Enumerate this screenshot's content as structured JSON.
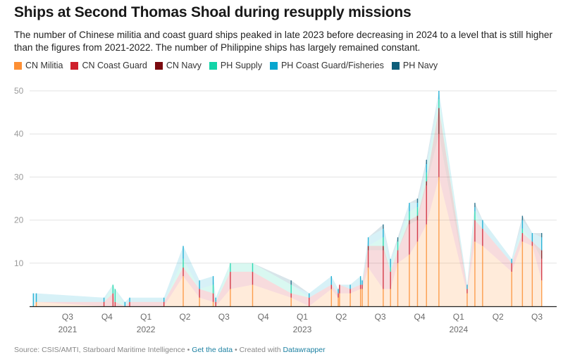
{
  "chart_data": {
    "type": "area",
    "title": "Ships at Second Thomas Shoal during resupply missions",
    "subtitle": "The number of Chinese militia and coast guard ships peaked in late 2023 before decreasing in 2024 to a level that is still higher than the figures from 2021-2022. The number of Philippine ships has largely remained constant.",
    "stacked": true,
    "xlabel": "",
    "ylabel": "",
    "ylim": [
      0,
      50
    ],
    "yticks": [
      10,
      20,
      30,
      40,
      50
    ],
    "grid": true,
    "legend_position": "top-left",
    "x_domain": [
      "2021-05-15",
      "2024-09-30"
    ],
    "x_ticks": [
      {
        "label": "Q3",
        "year": "2021",
        "date": "2021-08-15"
      },
      {
        "label": "Q4",
        "year": "",
        "date": "2021-11-15"
      },
      {
        "label": "Q1",
        "year": "2022",
        "date": "2022-02-14"
      },
      {
        "label": "Q2",
        "year": "",
        "date": "2022-05-16"
      },
      {
        "label": "Q3",
        "year": "",
        "date": "2022-08-15"
      },
      {
        "label": "Q4",
        "year": "",
        "date": "2022-11-15"
      },
      {
        "label": "Q1",
        "year": "2023",
        "date": "2023-02-14"
      },
      {
        "label": "Q2",
        "year": "",
        "date": "2023-05-16"
      },
      {
        "label": "Q3",
        "year": "",
        "date": "2023-08-15"
      },
      {
        "label": "Q4",
        "year": "",
        "date": "2023-11-15"
      },
      {
        "label": "Q1",
        "year": "2024",
        "date": "2024-02-14"
      },
      {
        "label": "Q2",
        "year": "",
        "date": "2024-05-16"
      },
      {
        "label": "Q3",
        "year": "",
        "date": "2024-08-15"
      }
    ],
    "series": [
      {
        "name": "CN Militia",
        "color": "#fd8f34"
      },
      {
        "name": "CN Coast Guard",
        "color": "#cf1f2b"
      },
      {
        "name": "CN Navy",
        "color": "#7a0a0f"
      },
      {
        "name": "PH Supply",
        "color": "#12d4a8"
      },
      {
        "name": "PH Coast Guard/Fisheries",
        "color": "#07a6cf"
      },
      {
        "name": "PH Navy",
        "color": "#0d5e7a"
      }
    ],
    "series_fill_opacity": [
      0.18,
      0.16,
      0.16,
      0.16,
      0.16,
      0.16
    ],
    "missions": [
      {
        "date": "2021-05-27",
        "values": [
          0,
          0,
          0,
          0,
          3,
          0
        ]
      },
      {
        "date": "2021-06-03",
        "values": [
          1,
          0,
          0,
          0,
          2,
          0
        ]
      },
      {
        "date": "2021-11-08",
        "values": [
          0,
          1,
          0,
          0,
          1,
          0
        ]
      },
      {
        "date": "2021-11-29",
        "values": [
          0,
          3,
          0,
          2,
          0,
          0
        ]
      },
      {
        "date": "2021-12-04",
        "values": [
          0,
          1,
          0,
          3,
          0,
          0
        ]
      },
      {
        "date": "2021-12-27",
        "values": [
          0,
          0,
          0,
          0,
          1,
          0
        ]
      },
      {
        "date": "2022-01-07",
        "values": [
          0,
          1,
          0,
          0,
          1,
          0
        ]
      },
      {
        "date": "2022-03-28",
        "values": [
          0,
          1,
          0,
          0,
          1,
          0
        ]
      },
      {
        "date": "2022-05-12",
        "values": [
          7,
          2,
          0,
          2,
          3,
          0
        ]
      },
      {
        "date": "2022-06-19",
        "values": [
          2,
          2,
          0,
          0,
          2,
          0
        ]
      },
      {
        "date": "2022-07-21",
        "values": [
          1,
          2,
          0,
          2,
          2,
          0
        ]
      },
      {
        "date": "2022-07-27",
        "values": [
          0,
          1,
          0,
          0,
          1,
          0
        ]
      },
      {
        "date": "2022-08-30",
        "values": [
          4,
          4,
          0,
          2,
          0,
          0
        ]
      },
      {
        "date": "2022-10-21",
        "values": [
          5,
          3,
          0,
          2,
          0,
          0
        ]
      },
      {
        "date": "2023-01-19",
        "values": [
          2,
          1,
          0,
          2,
          0,
          1
        ]
      },
      {
        "date": "2023-03-02",
        "values": [
          0,
          2,
          0,
          0,
          1,
          0
        ]
      },
      {
        "date": "2023-04-23",
        "values": [
          4,
          1,
          0,
          0,
          2,
          0
        ]
      },
      {
        "date": "2023-05-09",
        "values": [
          2,
          1,
          0,
          0,
          1,
          0
        ]
      },
      {
        "date": "2023-05-12",
        "values": [
          3,
          2,
          0,
          0,
          0,
          0
        ]
      },
      {
        "date": "2023-06-06",
        "values": [
          3,
          1,
          0,
          0,
          1,
          0
        ]
      },
      {
        "date": "2023-06-30",
        "values": [
          4,
          1,
          0,
          0,
          2,
          0
        ]
      },
      {
        "date": "2023-07-04",
        "values": [
          4,
          1,
          0,
          0,
          1,
          0
        ]
      },
      {
        "date": "2023-07-18",
        "values": [
          9,
          4,
          1,
          0,
          2,
          0
        ]
      },
      {
        "date": "2023-08-22",
        "values": [
          4,
          9,
          1,
          2,
          2,
          1
        ]
      },
      {
        "date": "2023-09-08",
        "values": [
          4,
          4,
          0,
          1,
          2,
          0
        ]
      },
      {
        "date": "2023-09-25",
        "values": [
          10,
          3,
          0,
          2,
          0,
          1
        ]
      },
      {
        "date": "2023-10-22",
        "values": [
          12,
          7,
          1,
          2,
          2,
          0
        ]
      },
      {
        "date": "2023-11-10",
        "values": [
          15,
          5,
          1,
          2,
          1,
          1
        ]
      },
      {
        "date": "2023-12-01",
        "values": [
          19,
          9,
          1,
          2,
          2,
          1
        ]
      },
      {
        "date": "2023-12-30",
        "values": [
          30,
          10,
          6,
          2,
          2,
          0
        ]
      },
      {
        "date": "2024-03-05",
        "values": [
          3,
          1,
          0,
          0,
          1,
          0
        ]
      },
      {
        "date": "2024-03-23",
        "values": [
          15,
          5,
          0,
          2,
          1,
          1
        ]
      },
      {
        "date": "2024-04-10",
        "values": [
          14,
          4,
          0,
          0,
          2,
          0
        ]
      },
      {
        "date": "2024-06-17",
        "values": [
          8,
          2,
          0,
          0,
          1,
          0
        ]
      },
      {
        "date": "2024-07-12",
        "values": [
          15,
          2,
          0,
          1,
          2,
          1
        ]
      },
      {
        "date": "2024-08-04",
        "values": [
          14,
          1,
          0,
          0,
          2,
          0
        ]
      },
      {
        "date": "2024-08-26",
        "values": [
          6,
          5,
          2,
          0,
          3,
          1
        ]
      }
    ]
  },
  "legend": [
    {
      "label": "CN Militia",
      "color": "#fd8f34"
    },
    {
      "label": "CN Coast Guard",
      "color": "#cf1f2b"
    },
    {
      "label": "CN Navy",
      "color": "#7a0a0f"
    },
    {
      "label": "PH Supply",
      "color": "#12d4a8"
    },
    {
      "label": "PH Coast Guard/Fisheries",
      "color": "#07a6cf"
    },
    {
      "label": "PH Navy",
      "color": "#0d5e7a"
    }
  ],
  "footer": {
    "source": "Source: CSIS/AMTI, Starboard Maritime Intelligence",
    "sep": " • ",
    "get_data": "Get the data",
    "created_with": "Created with ",
    "tool": "Datawrapper"
  }
}
